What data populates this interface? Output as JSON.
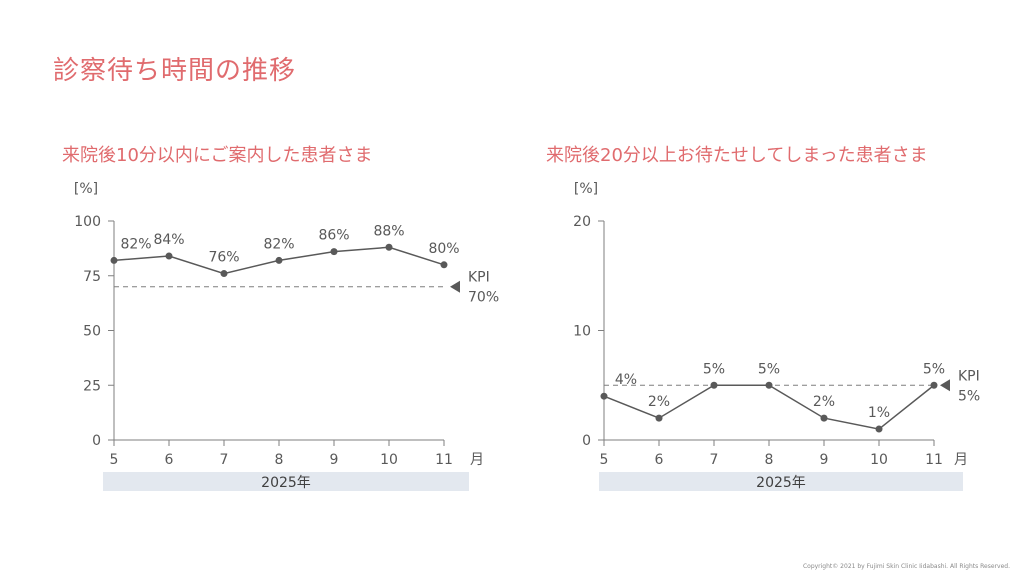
{
  "page_title": "診察待ち時間の推移",
  "copyright": "Copyright© 2021 by Fujimi Skin Clinic Iidabashi. All Rights Reserved.",
  "colors": {
    "accent": "#e06b6e",
    "line": "#595959",
    "axis": "#7f7f7f",
    "year_band": "#e3e8ef"
  },
  "chart_data": [
    {
      "type": "line",
      "title": "来院後10分以内にご案内した患者さま",
      "ylabel": "[%]",
      "x_unit": "月",
      "year_label": "2025年",
      "categories": [
        "5",
        "6",
        "7",
        "8",
        "9",
        "10",
        "11"
      ],
      "values": [
        82,
        84,
        76,
        82,
        86,
        88,
        80
      ],
      "data_labels": [
        "82%",
        "84%",
        "76%",
        "82%",
        "86%",
        "88%",
        "80%"
      ],
      "ylim": [
        0,
        100
      ],
      "yticks": [
        0,
        25,
        50,
        75,
        100
      ],
      "kpi": {
        "label": "KPI",
        "value": 70,
        "value_label": "70%"
      }
    },
    {
      "type": "line",
      "title": "来院後20分以上お待たせしてしまった患者さま",
      "ylabel": "[%]",
      "x_unit": "月",
      "year_label": "2025年",
      "categories": [
        "5",
        "6",
        "7",
        "8",
        "9",
        "10",
        "11"
      ],
      "values": [
        4,
        2,
        5,
        5,
        2,
        1,
        5
      ],
      "data_labels": [
        "4%",
        "2%",
        "5%",
        "5%",
        "2%",
        "1%",
        "5%"
      ],
      "ylim": [
        0,
        20
      ],
      "yticks": [
        0,
        10,
        20
      ],
      "kpi": {
        "label": "KPI",
        "value": 5,
        "value_label": "5%"
      }
    }
  ]
}
